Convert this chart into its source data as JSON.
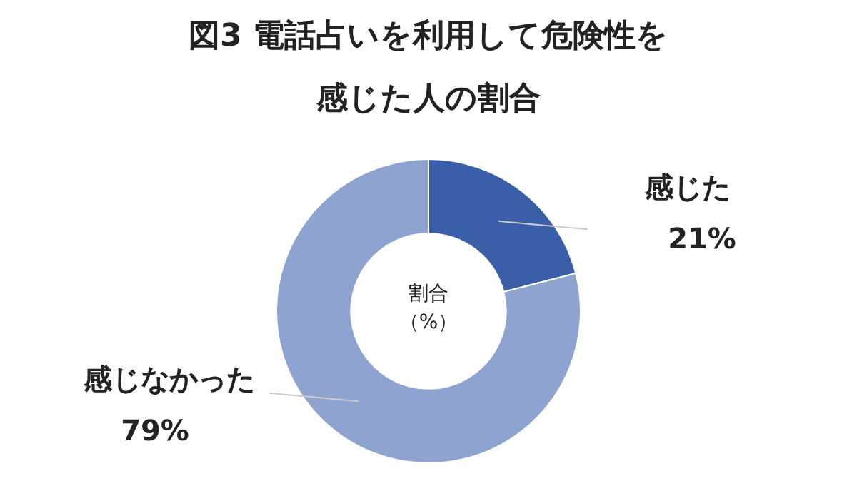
{
  "chart_data": {
    "type": "donut",
    "title": "図3 電話占いを利用して危険性を感じた人の割合",
    "categories": [
      "感じた",
      "感じなかった"
    ],
    "values": [
      21,
      79
    ],
    "colors": [
      "#3a5fa8",
      "#8fa3d1"
    ],
    "value_labels": [
      "21%",
      "79%"
    ],
    "annotations": [
      "割合",
      "（%）"
    ],
    "legend": false
  }
}
